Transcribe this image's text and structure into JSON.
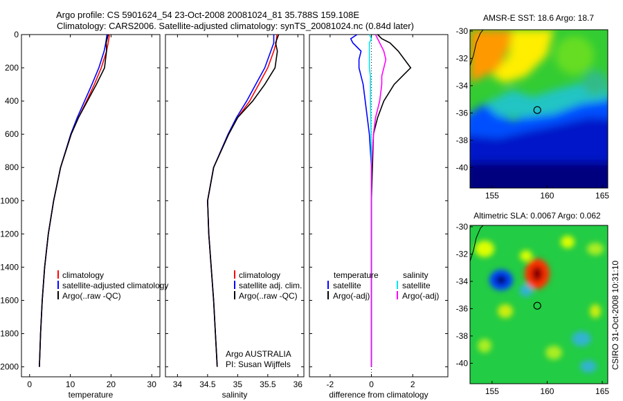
{
  "header": {
    "title_line1": "Argo profile: CS 5901624_54 23-Oct-2008 20081024_81 35.788S 159.108E",
    "title_line2": "Climatology: CARS2006. Satellite-adjusted climatology: synTS_20081024.nc (0.84d later)"
  },
  "colors": {
    "climatology": "#ff0000",
    "satellite": "#0000ff",
    "argo": "#000000",
    "sat_salinity": "#00e5ee",
    "argo_salinity": "#ff00ff",
    "sst_warm": "#ff9900",
    "sst_cold": "#00007f"
  },
  "chart_data": [
    {
      "type": "line",
      "xlabel": "temperature",
      "ylabel": "",
      "xlim": [
        -2,
        32
      ],
      "ylim": [
        2060,
        0
      ],
      "xticks": [
        "0",
        "10",
        "20",
        "30"
      ],
      "yticks": [
        "0",
        "200",
        "400",
        "600",
        "800",
        "1000",
        "1200",
        "1400",
        "1600",
        "1800",
        "2000"
      ],
      "y": [
        0,
        50,
        100,
        200,
        300,
        400,
        500,
        600,
        800,
        1000,
        1200,
        1400,
        1600,
        1800,
        2000
      ],
      "series": [
        {
          "name": "climatology",
          "values": [
            19.6,
            19.3,
            18.9,
            17.6,
            15.9,
            14.0,
            12.0,
            10.2,
            7.6,
            5.9,
            4.6,
            3.7,
            3.1,
            2.7,
            2.4
          ]
        },
        {
          "name": "satellite-adjusted climatology",
          "values": [
            19.0,
            18.7,
            18.3,
            17.0,
            15.3,
            13.5,
            11.7,
            10.1,
            7.6,
            5.9,
            4.6,
            3.7,
            3.1,
            2.7,
            2.4
          ]
        },
        {
          "name": "Argo(..raw -QC)",
          "values": [
            19.3,
            18.8,
            18.9,
            18.4,
            16.4,
            14.2,
            12.0,
            10.2,
            7.6,
            5.9,
            4.6,
            3.7,
            3.1,
            2.7,
            2.4
          ]
        }
      ],
      "legend": [
        "climatology",
        "satellite-adjusted climatology",
        "Argo(..raw -QC)"
      ]
    },
    {
      "type": "line",
      "xlabel": "salinity",
      "ylabel": "",
      "xlim": [
        33.8,
        36.1
      ],
      "ylim": [
        2060,
        0
      ],
      "xticks": [
        "34",
        "34.5",
        "35",
        "35.5",
        "36"
      ],
      "y": [
        0,
        50,
        100,
        200,
        300,
        400,
        500,
        600,
        800,
        1000,
        1200,
        1400,
        1600,
        1800,
        2000
      ],
      "series": [
        {
          "name": "climatology",
          "values": [
            35.65,
            35.64,
            35.6,
            35.5,
            35.35,
            35.2,
            35.0,
            34.85,
            34.6,
            34.5,
            34.52,
            34.56,
            34.6,
            34.63,
            34.66
          ]
        },
        {
          "name": "satellite adj. clim.",
          "values": [
            35.6,
            35.6,
            35.55,
            35.45,
            35.3,
            35.15,
            34.98,
            34.84,
            34.6,
            34.5,
            34.52,
            34.56,
            34.6,
            34.63,
            34.66
          ]
        },
        {
          "name": "Argo(..raw -QC)",
          "values": [
            35.68,
            35.63,
            35.66,
            35.62,
            35.45,
            35.25,
            35.0,
            34.85,
            34.6,
            34.5,
            34.52,
            34.56,
            34.6,
            34.63,
            34.66
          ]
        }
      ],
      "legend": [
        "climatology",
        "satellite adj. clim.",
        "Argo(..raw -QC)"
      ],
      "annotation": [
        "Argo AUSTRALIA",
        "PI: Susan Wijffels"
      ]
    },
    {
      "type": "line",
      "xlabel": "difference from climatology",
      "ylabel": "",
      "xlim": [
        -3,
        3.7
      ],
      "ylim": [
        2060,
        0
      ],
      "xticks": [
        "-2",
        "0",
        "2"
      ],
      "y": [
        0,
        25,
        50,
        100,
        150,
        200,
        250,
        300,
        400,
        500,
        600,
        800,
        1000,
        1200,
        1400,
        1600,
        1800,
        2000
      ],
      "series": [
        {
          "name": "temperature satellite",
          "values": [
            -0.7,
            -1.0,
            -0.9,
            -0.5,
            -0.6,
            -0.6,
            -0.5,
            -0.4,
            -0.3,
            -0.2,
            -0.1,
            0.0,
            0.0,
            0.0,
            0.0,
            0.0,
            0.0,
            0.0
          ]
        },
        {
          "name": "temperature Argo(-adj)",
          "values": [
            0.3,
            0.5,
            0.9,
            1.3,
            1.6,
            1.9,
            1.5,
            1.1,
            0.6,
            0.3,
            0.1,
            0.05,
            0.0,
            0.0,
            0.0,
            0.0,
            0.0,
            0.0
          ]
        },
        {
          "name": "salinity satellite",
          "values": [
            -0.1,
            0.0,
            -0.1,
            -0.1,
            -0.1,
            -0.1,
            -0.05,
            -0.05,
            -0.05,
            -0.03,
            -0.02,
            0.0,
            0.0,
            0.0,
            0.0,
            0.0,
            0.0,
            0.0
          ]
        },
        {
          "name": "salinity Argo(-adj)",
          "values": [
            0.2,
            0.3,
            0.4,
            0.6,
            0.7,
            0.6,
            0.5,
            0.5,
            0.4,
            0.2,
            0.1,
            0.0,
            0.0,
            0.0,
            0.0,
            0.0,
            0.0,
            0.0
          ]
        }
      ],
      "legend": {
        "temperature_header": "temperature",
        "salinity_header": "salinity",
        "temperature_items": [
          "satellite",
          "Argo(-adj)"
        ],
        "salinity_items": [
          "satellite",
          "Argo(-adj)"
        ]
      }
    },
    {
      "type": "heatmap",
      "title": "AMSR-E SST: 18.6 Argo: 18.7",
      "xlim": [
        153,
        165.5
      ],
      "ylim": [
        -41.5,
        -29.9
      ],
      "xticks": [
        "155",
        "160",
        "165"
      ],
      "yticks": [
        "-30",
        "-32",
        "-34",
        "-36",
        "-38",
        "-40"
      ],
      "marker": {
        "lon": 159.108,
        "lat": -35.788
      }
    },
    {
      "type": "heatmap",
      "title": "Altimetric SLA: 0.0067 Argo: 0.062",
      "xlim": [
        153,
        165.5
      ],
      "ylim": [
        -41.5,
        -29.9
      ],
      "xticks": [
        "155",
        "160",
        "165"
      ],
      "yticks": [
        "-30",
        "-32",
        "-34",
        "-36",
        "-38",
        "-40"
      ],
      "marker": {
        "lon": 159.108,
        "lat": -35.788
      }
    }
  ],
  "footer": {
    "credit": "CSIRO 31-Oct-2008 10:31:10"
  }
}
